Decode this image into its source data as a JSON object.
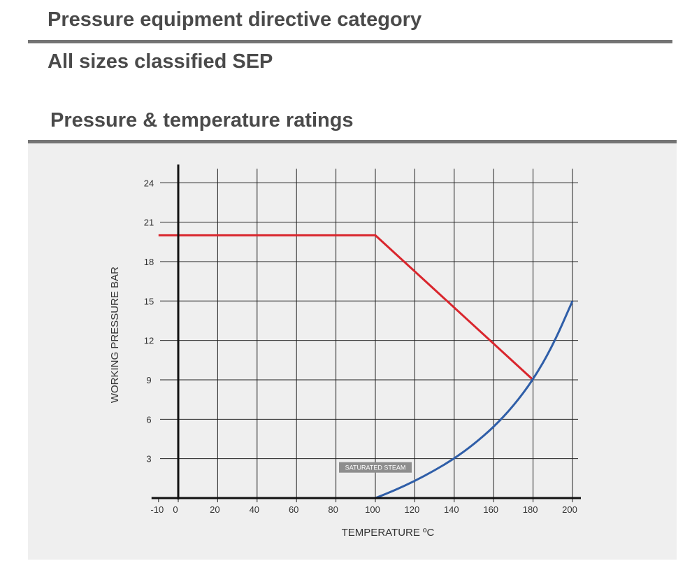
{
  "page": {
    "heading_category": "Pressure equipment directive category",
    "subheading_sep": "All sizes classified SEP",
    "heading_ratings": "Pressure & temperature ratings"
  },
  "chart_data": {
    "type": "line",
    "title": "",
    "xlabel": "TEMPERATURE ºC",
    "ylabel": "WORKING PRESSURE BAR",
    "xlim": [
      -10,
      200
    ],
    "ylim": [
      0,
      24
    ],
    "x_ticks": [
      -10,
      0,
      20,
      40,
      60,
      80,
      100,
      120,
      140,
      160,
      180,
      200
    ],
    "y_ticks": [
      3,
      6,
      9,
      12,
      15,
      18,
      21,
      24
    ],
    "grid": true,
    "series": [
      {
        "color": "#d9262d",
        "x": [
          -10,
          100,
          180
        ],
        "y": [
          20,
          20,
          9
        ]
      },
      {
        "color": "#2f5ea8",
        "x": [
          100,
          110,
          120,
          130,
          140,
          150,
          160,
          170,
          180,
          190,
          200
        ],
        "y": [
          0,
          0.6,
          1.3,
          2.1,
          3.0,
          4.1,
          5.4,
          7.0,
          9.0,
          11.6,
          15.0
        ]
      }
    ],
    "annotations": [
      {
        "text": "SATURATED STEAM",
        "x": 100,
        "y": 2.2
      }
    ]
  }
}
